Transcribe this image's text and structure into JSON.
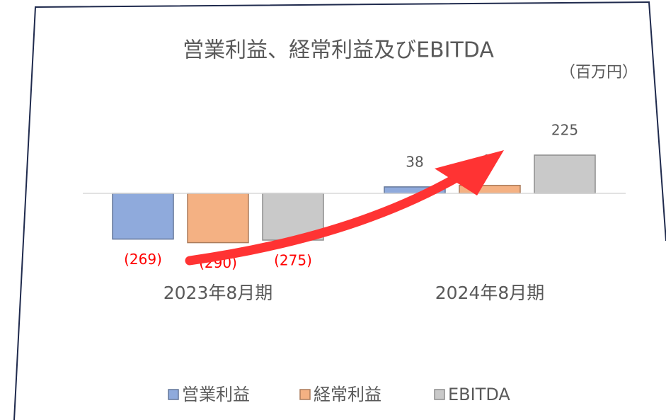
{
  "chart_data": {
    "type": "bar",
    "title": "営業利益、経常利益及びEBITDA",
    "subtitle": "（百万円）",
    "categories": [
      "2023年8月期",
      "2024年8月期"
    ],
    "series": [
      {
        "name": "営業利益",
        "color": "#8faadc",
        "values": [
          -269,
          38
        ],
        "value_labels": [
          "(269)",
          "38"
        ]
      },
      {
        "name": "経常利益",
        "color": "#f4b183",
        "values": [
          -290,
          47
        ],
        "value_labels": [
          "(290)",
          "47"
        ]
      },
      {
        "name": "EBITDA",
        "color": "#c9c9c9",
        "values": [
          -275,
          225
        ],
        "value_labels": [
          "(275)",
          "225"
        ]
      }
    ],
    "ylim": [
      -400,
      300
    ],
    "legend": "bottom"
  }
}
